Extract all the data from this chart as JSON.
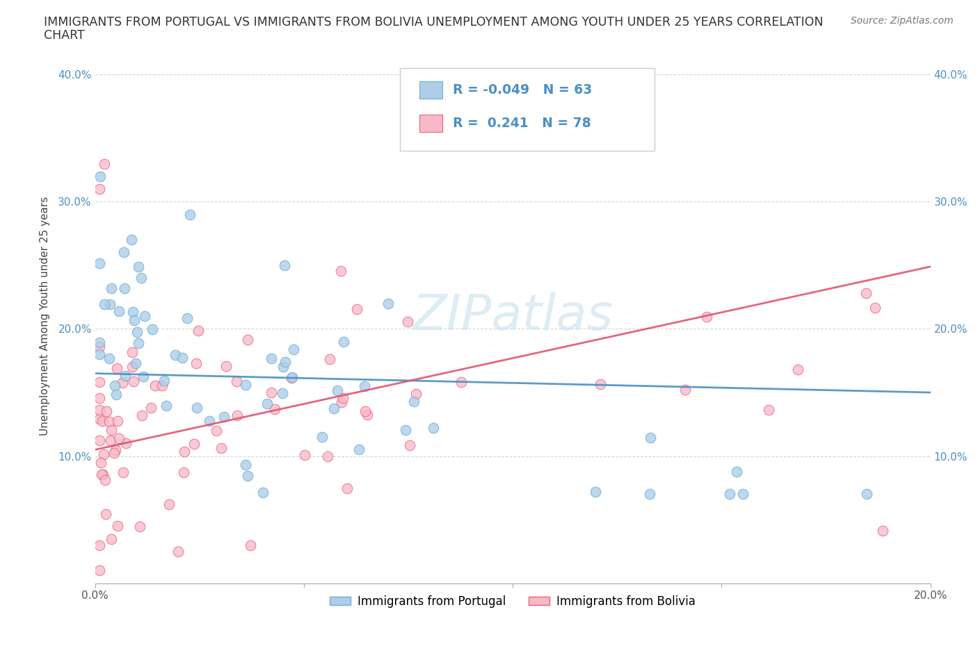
{
  "title_line1": "IMMIGRANTS FROM PORTUGAL VS IMMIGRANTS FROM BOLIVIA UNEMPLOYMENT AMONG YOUTH UNDER 25 YEARS CORRELATION",
  "title_line2": "CHART",
  "source": "Source: ZipAtlas.com",
  "ylabel": "Unemployment Among Youth under 25 years",
  "xlim": [
    0.0,
    0.2
  ],
  "ylim": [
    0.0,
    0.42
  ],
  "r_portugal": -0.049,
  "n_portugal": 63,
  "r_bolivia": 0.241,
  "n_bolivia": 78,
  "portugal_color": "#aecde8",
  "portugal_edge": "#6aaed6",
  "bolivia_color": "#f9b8c8",
  "bolivia_edge": "#e8607a",
  "portugal_line_color": "#4a90c4",
  "bolivia_line_color": "#e05570",
  "axis_label_color": "#4a90c4",
  "background_color": "#ffffff",
  "grid_color": "#cccccc",
  "watermark_color": "#d0e4f0",
  "title_color": "#333333",
  "source_color": "#777777"
}
